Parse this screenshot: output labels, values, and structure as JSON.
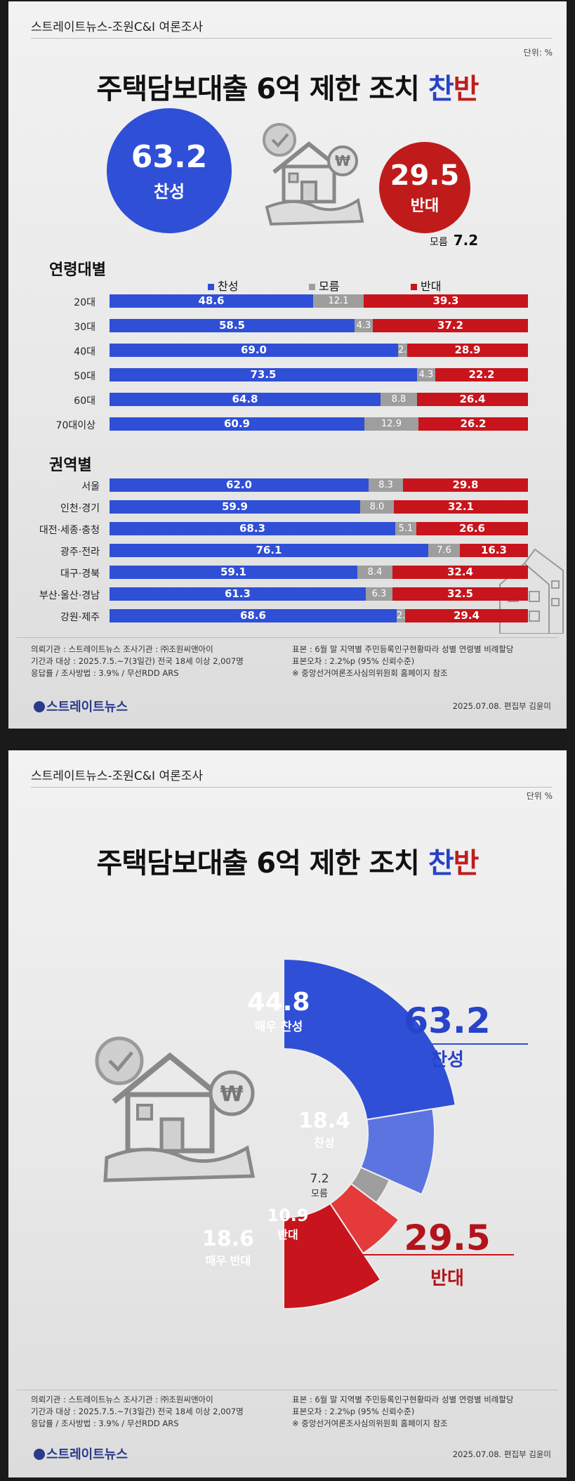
{
  "header": {
    "source": "스트레이트뉴스-조원C&I 여론조사",
    "unit": "단위: %",
    "unit2": "단위 %"
  },
  "title": {
    "main": "주택담보대출 6억 제한 조치 ",
    "for_word": "찬",
    "against_word": "반"
  },
  "summary": {
    "for_value": "63.2",
    "for_label": "찬성",
    "against_value": "29.5",
    "against_label": "반대",
    "unknown_label": "모름",
    "unknown_value": "7.2"
  },
  "legend": {
    "for": "찬성",
    "unknown": "모름",
    "against": "반대"
  },
  "colors": {
    "for": "#2f4fd6",
    "unknown": "#9e9e9e",
    "against": "#c8141c",
    "for_light": "#5b74df",
    "against_light": "#e43a3a"
  },
  "chart_data": [
    {
      "type": "bar",
      "title": "연령대별",
      "stacked": true,
      "categories": [
        "20대",
        "30대",
        "40대",
        "50대",
        "60대",
        "70대이상"
      ],
      "series": [
        {
          "name": "찬성",
          "values": [
            48.6,
            58.5,
            69.0,
            73.5,
            64.8,
            60.9
          ]
        },
        {
          "name": "모름",
          "values": [
            12.1,
            4.3,
            2.1,
            4.3,
            8.8,
            12.9
          ]
        },
        {
          "name": "반대",
          "values": [
            39.3,
            37.2,
            28.9,
            22.2,
            26.4,
            26.2
          ]
        }
      ]
    },
    {
      "type": "bar",
      "title": "권역별",
      "stacked": true,
      "categories": [
        "서울",
        "인천·경기",
        "대전·세종·충청",
        "광주·전라",
        "대구·경북",
        "부산·울산·경남",
        "강원·제주"
      ],
      "series": [
        {
          "name": "찬성",
          "values": [
            62.0,
            59.9,
            68.3,
            76.1,
            59.1,
            61.3,
            68.6
          ]
        },
        {
          "name": "모름",
          "values": [
            8.3,
            8.0,
            5.1,
            7.6,
            8.4,
            6.3,
            2.0
          ]
        },
        {
          "name": "반대",
          "values": [
            29.8,
            32.1,
            26.6,
            16.3,
            32.4,
            32.5,
            29.4
          ]
        }
      ]
    },
    {
      "type": "pie",
      "slices": [
        {
          "label": "매우 찬성",
          "value": 44.8
        },
        {
          "label": "찬성",
          "value": 18.4
        },
        {
          "label": "모름",
          "value": 7.2
        },
        {
          "label": "반대",
          "value": 10.9
        },
        {
          "label": "매우 반대",
          "value": 18.6
        }
      ],
      "totals": [
        {
          "label": "찬성",
          "value": 63.2
        },
        {
          "label": "반대",
          "value": 29.5
        }
      ]
    }
  ],
  "footer": {
    "line1": "의뢰기관 : 스트레이트뉴스      조사기관 : ㈜조원씨앤아이",
    "line2": "기간과 대상 : 2025.7.5.~7(3일간)  전국 18세 이상  2,007명",
    "line3": "응답률 / 조사방법 : 3.9% / 무선RDD ARS",
    "r1": "표본 : 6월 말 지역별 주민등록인구현황따라 성별 연령별 비례할당",
    "r2": "표본오차 : 2.2%p (95% 신뢰수준)",
    "r3": "※ 중앙선거여론조사심의위원회 홈페이지 참조",
    "logo": "스트레이트뉴스",
    "date": "2025.07.08. 편집부 김윤미"
  }
}
